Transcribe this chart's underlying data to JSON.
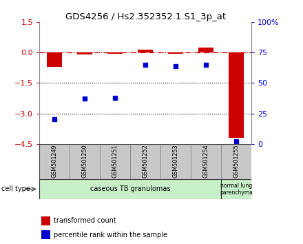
{
  "title": "GDS4256 / Hs2.352352.1.S1_3p_at",
  "samples": [
    "GSM501249",
    "GSM501250",
    "GSM501251",
    "GSM501252",
    "GSM501253",
    "GSM501254",
    "GSM501255"
  ],
  "red_values": [
    -0.7,
    -0.1,
    -0.05,
    0.15,
    -0.05,
    0.25,
    -4.2
  ],
  "blue_values": [
    20,
    37,
    38,
    65,
    64,
    65,
    2
  ],
  "left_ylim": [
    -4.5,
    1.5
  ],
  "right_ylim": [
    0,
    100
  ],
  "left_yticks": [
    1.5,
    0,
    -1.5,
    -3.0,
    -4.5
  ],
  "right_yticks": [
    100,
    75,
    50,
    25,
    0
  ],
  "right_yticklabels": [
    "100%",
    "75",
    "50",
    "25",
    "0"
  ],
  "dotted_lines": [
    -1.5,
    -3.0
  ],
  "red_color": "#cc0000",
  "blue_color": "#0000cc",
  "bar_width": 0.5,
  "marker_size": 5,
  "legend_red": "transformed count",
  "legend_blue": "percentile rank within the sample",
  "cell_type_label": "cell type",
  "group1_label": "caseous TB granulomas",
  "group2_label": "normal lung\nparenchyma",
  "group_color": "#c8f0c8",
  "sample_box_color": "#c8c8c8",
  "sample_box_edge": "#888888"
}
